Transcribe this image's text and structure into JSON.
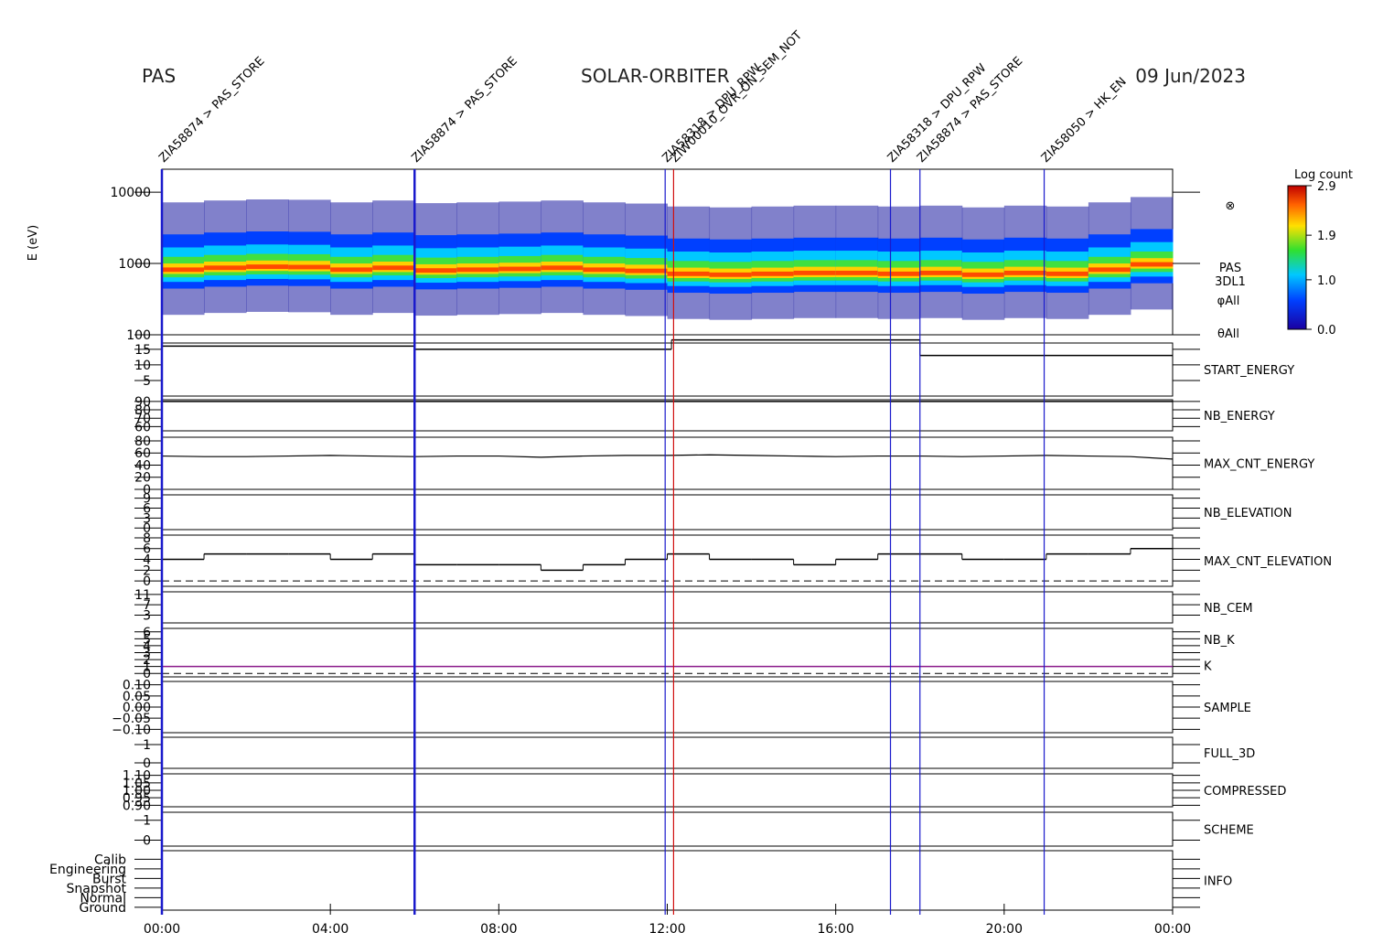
{
  "header": {
    "left": "PAS",
    "center": "SOLAR-ORBITER",
    "right": "09 Jun/2023"
  },
  "time_axis": {
    "xlim": [
      0,
      24
    ],
    "xticks": [
      {
        "value": 0,
        "label": "00:00"
      },
      {
        "value": 4,
        "label": "04:00"
      },
      {
        "value": 8,
        "label": "08:00"
      },
      {
        "value": 12,
        "label": "12:00"
      },
      {
        "value": 16,
        "label": "16:00"
      },
      {
        "value": 20,
        "label": "20:00"
      },
      {
        "value": 24,
        "label": "00:00"
      }
    ]
  },
  "events": [
    {
      "time": 0,
      "label": "ZIA58874 > PAS_STORE",
      "color": "#1a1acc"
    },
    {
      "time": 6,
      "label": "ZIA58874 > PAS_STORE",
      "color": "#1a1acc"
    },
    {
      "time": 11.95,
      "label": "ZIA58318 > DPU_RPW",
      "color": "#1a1acc"
    },
    {
      "time": 12.15,
      "label": "ZIW00010_OVR_ON_SEM_NOT",
      "color": "#d01010"
    },
    {
      "time": 17.3,
      "label": "ZIA58318 > DPU_RPW",
      "color": "#1a1acc"
    },
    {
      "time": 18,
      "label": "ZIA58874 > PAS_STORE",
      "color": "#1a1acc"
    },
    {
      "time": 20.95,
      "label": "ZIA58050 > HK_EN",
      "color": "#1a1acc"
    }
  ],
  "colorbar": {
    "title": "Log count",
    "lim": [
      0,
      2.9
    ],
    "ticks": [
      {
        "value": 0,
        "label": "0.0"
      },
      {
        "value": 1,
        "label": "1.0"
      },
      1.9,
      2.9
    ]
  },
  "chart_data": [
    {
      "type": "spectrogram",
      "y_label": "E (eV)",
      "log": true,
      "ylim": [
        100,
        21000
      ],
      "yticks": [
        100,
        1000,
        10000
      ],
      "side_labels": [
        "⊗",
        "PAS",
        "3DL1",
        "φAll",
        "θAll"
      ],
      "x": [
        0.5,
        1.5,
        2.5,
        3.5,
        4.5,
        5.5,
        6.5,
        7.5,
        8.5,
        9.5,
        10.5,
        11.5,
        12.5,
        13.5,
        14.5,
        15.5,
        16.5,
        17.5,
        18.5,
        19.5,
        20.5,
        21.5,
        22.5,
        23.5
      ],
      "values": [
        800,
        850,
        880,
        870,
        800,
        850,
        780,
        800,
        820,
        850,
        800,
        770,
        700,
        680,
        700,
        720,
        720,
        700,
        720,
        680,
        720,
        700,
        800,
        950
      ]
    },
    {
      "type": "step",
      "name": "START_ENERGY",
      "name_color": "#000000",
      "ylim": [
        0,
        17
      ],
      "yticks": [
        5,
        10,
        15
      ],
      "color": "#000000",
      "x": [
        0,
        6,
        12.1,
        18
      ],
      "values": [
        16,
        15,
        18,
        13
      ]
    },
    {
      "type": "step",
      "name": "NB_ENERGY",
      "name_color": "#1a1acc",
      "ylim": [
        55,
        92
      ],
      "yticks": [
        60,
        70,
        80,
        90
      ],
      "color": "#000000",
      "x": [
        0
      ],
      "values": [
        90
      ]
    },
    {
      "type": "line",
      "name": "MAX_CNT_ENERGY",
      "name_color": "#000000",
      "ylim": [
        0,
        86
      ],
      "yticks": [
        0,
        20,
        40,
        60,
        80
      ],
      "color": "#000000",
      "x": [
        0,
        1,
        2,
        3,
        4,
        5,
        6,
        7,
        8,
        9,
        10,
        11,
        12,
        13,
        14,
        15,
        16,
        17,
        18,
        19,
        20,
        21,
        22,
        23,
        24
      ],
      "values": [
        55,
        54,
        54,
        55,
        56,
        55,
        54,
        55,
        55,
        53,
        55,
        56,
        56,
        57,
        56,
        55,
        54,
        55,
        55,
        54,
        55,
        56,
        55,
        54,
        50
      ]
    },
    {
      "type": "blank",
      "name": "NB_ELEVATION",
      "name_color": "#1a1acc",
      "ylim": [
        -0.5,
        10
      ],
      "yticks": [
        0,
        3,
        6,
        9
      ]
    },
    {
      "type": "step",
      "name": "MAX_CNT_ELEVATION",
      "name_color": "#000000",
      "ylim": [
        -1,
        8.5
      ],
      "yticks": [
        0,
        2,
        4,
        6,
        8
      ],
      "color": "#000000",
      "zero_line": true,
      "x": [
        0,
        1,
        2,
        3,
        4,
        5,
        6,
        7,
        8,
        9,
        10,
        11,
        12,
        13,
        14,
        15,
        16,
        17,
        18,
        19,
        20,
        21,
        22,
        23
      ],
      "values": [
        4,
        5,
        5,
        5,
        4,
        5,
        3,
        3,
        3,
        2,
        3,
        4,
        5,
        4,
        4,
        3,
        4,
        5,
        5,
        4,
        4,
        5,
        5,
        6
      ]
    },
    {
      "type": "blank",
      "name": "NB_CEM",
      "name_color": "#1a1acc",
      "ylim": [
        0,
        12
      ],
      "yticks": [
        3,
        7,
        11
      ]
    },
    {
      "type": "step",
      "name": "NB_K",
      "name_color": "#d01010",
      "second_name": "K",
      "second_name_color": "#1a1acc",
      "ylim": [
        -0.5,
        6.5
      ],
      "yticks": [
        0,
        1,
        2,
        3,
        4,
        5,
        6
      ],
      "color": "#8a1a8a",
      "zero_line": true,
      "x": [
        0
      ],
      "values": [
        1
      ]
    },
    {
      "type": "blank",
      "name": "SAMPLE",
      "name_color": "#1a1acc",
      "ylim": [
        -0.115,
        0.115
      ],
      "yticks": [
        {
          "value": -0.1,
          "label": "−0.10"
        },
        {
          "value": -0.05,
          "label": "−0.05"
        },
        {
          "value": 0,
          "label": "0.00"
        },
        {
          "value": 0.05,
          "label": "0.05"
        },
        {
          "value": 0.1,
          "label": "0.10"
        }
      ]
    },
    {
      "type": "blank",
      "name": "FULL_3D",
      "name_color": "#1a1acc",
      "ylim": [
        -0.3,
        1.4
      ],
      "yticks": [
        0,
        1
      ]
    },
    {
      "type": "blank",
      "name": "COMPRESSED",
      "name_color": "#000000",
      "ylim": [
        0.89,
        1.11
      ],
      "yticks": [
        {
          "value": 0.9,
          "label": "0.90"
        },
        {
          "value": 0.95,
          "label": "0.95"
        },
        {
          "value": 1,
          "label": "1.00"
        },
        {
          "value": 1.05,
          "label": "1.05"
        },
        {
          "value": 1.1,
          "label": "1.10"
        }
      ]
    },
    {
      "type": "blank",
      "name": "SCHEME",
      "name_color": "#000000",
      "ylim": [
        -0.3,
        1.4
      ],
      "yticks": [
        0,
        1
      ]
    },
    {
      "type": "categorical",
      "name": "INFO",
      "name_color": "#000000",
      "ylim": [
        -0.3,
        5.9
      ],
      "categories": [
        "Ground",
        "Normal",
        "Snapshot",
        "Burst",
        "Engineering",
        "Calib"
      ]
    }
  ]
}
